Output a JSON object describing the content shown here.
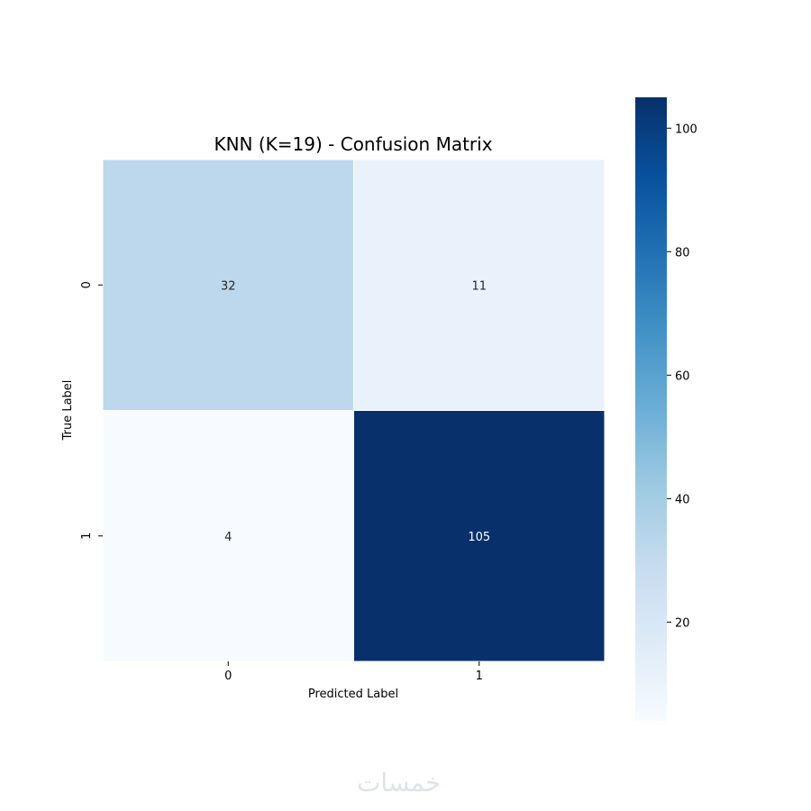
{
  "chart_data": {
    "type": "heatmap",
    "title": "KNN (K=19) - Confusion Matrix",
    "xlabel": "Predicted Label",
    "ylabel": "True Label",
    "x_categories": [
      "0",
      "1"
    ],
    "y_categories": [
      "0",
      "1"
    ],
    "values": [
      [
        32,
        11
      ],
      [
        4,
        105
      ]
    ],
    "colormap": "Blues",
    "colorbar": {
      "range": [
        4,
        105
      ],
      "ticks": [
        20,
        40,
        60,
        80,
        100
      ]
    },
    "colors": {
      "low": "#f7fbff",
      "high": "#08306b",
      "annotation_dark": "#262626",
      "annotation_light": "#ffffff"
    }
  },
  "watermark": "خمسات"
}
